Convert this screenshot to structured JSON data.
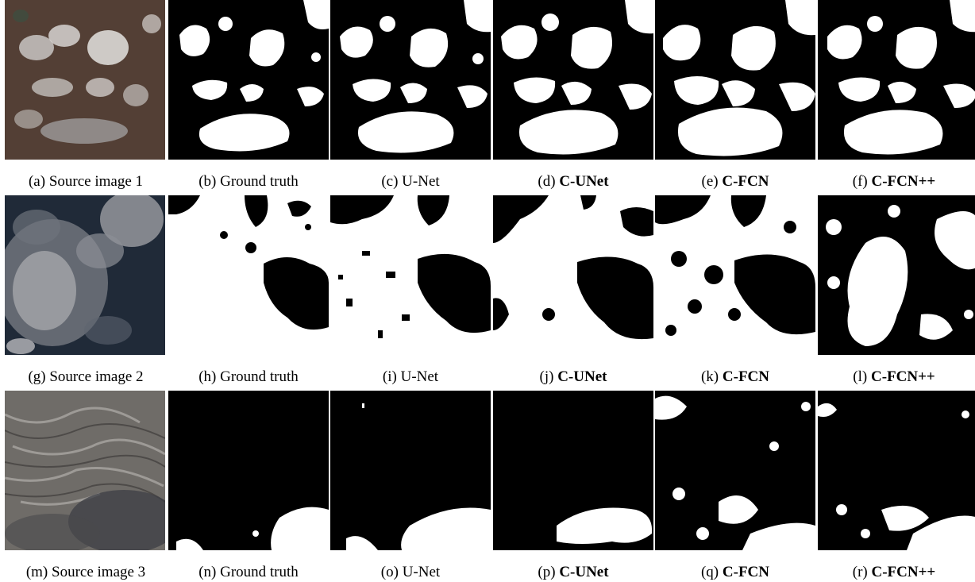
{
  "figure": {
    "rows": [
      {
        "panels": [
          {
            "letter": "(a)",
            "label": "Source image 1",
            "bold": false
          },
          {
            "letter": "(b)",
            "label": "Ground truth",
            "bold": false
          },
          {
            "letter": "(c)",
            "label": "U-Net",
            "bold": false
          },
          {
            "letter": "(d)",
            "label": "C-UNet",
            "bold": true
          },
          {
            "letter": "(e)",
            "label": "C-FCN",
            "bold": true
          },
          {
            "letter": "(f)",
            "label": "C-FCN++",
            "bold": true
          }
        ]
      },
      {
        "panels": [
          {
            "letter": "(g)",
            "label": "Source image 2",
            "bold": false
          },
          {
            "letter": "(h)",
            "label": "Ground truth",
            "bold": false
          },
          {
            "letter": "(i)",
            "label": "U-Net",
            "bold": false
          },
          {
            "letter": "(j)",
            "label": "C-UNet",
            "bold": true
          },
          {
            "letter": "(k)",
            "label": "C-FCN",
            "bold": true
          },
          {
            "letter": "(l)",
            "label": "C-FCN++",
            "bold": true
          }
        ]
      },
      {
        "panels": [
          {
            "letter": "(m)",
            "label": "Source image 3",
            "bold": false
          },
          {
            "letter": "(n)",
            "label": "Ground truth",
            "bold": false
          },
          {
            "letter": "(o)",
            "label": "U-Net",
            "bold": false
          },
          {
            "letter": "(p)",
            "label": "C-UNet",
            "bold": true
          },
          {
            "letter": "(q)",
            "label": "C-FCN",
            "bold": true
          },
          {
            "letter": "(r)",
            "label": "C-FCN++",
            "bold": true
          }
        ]
      }
    ]
  }
}
